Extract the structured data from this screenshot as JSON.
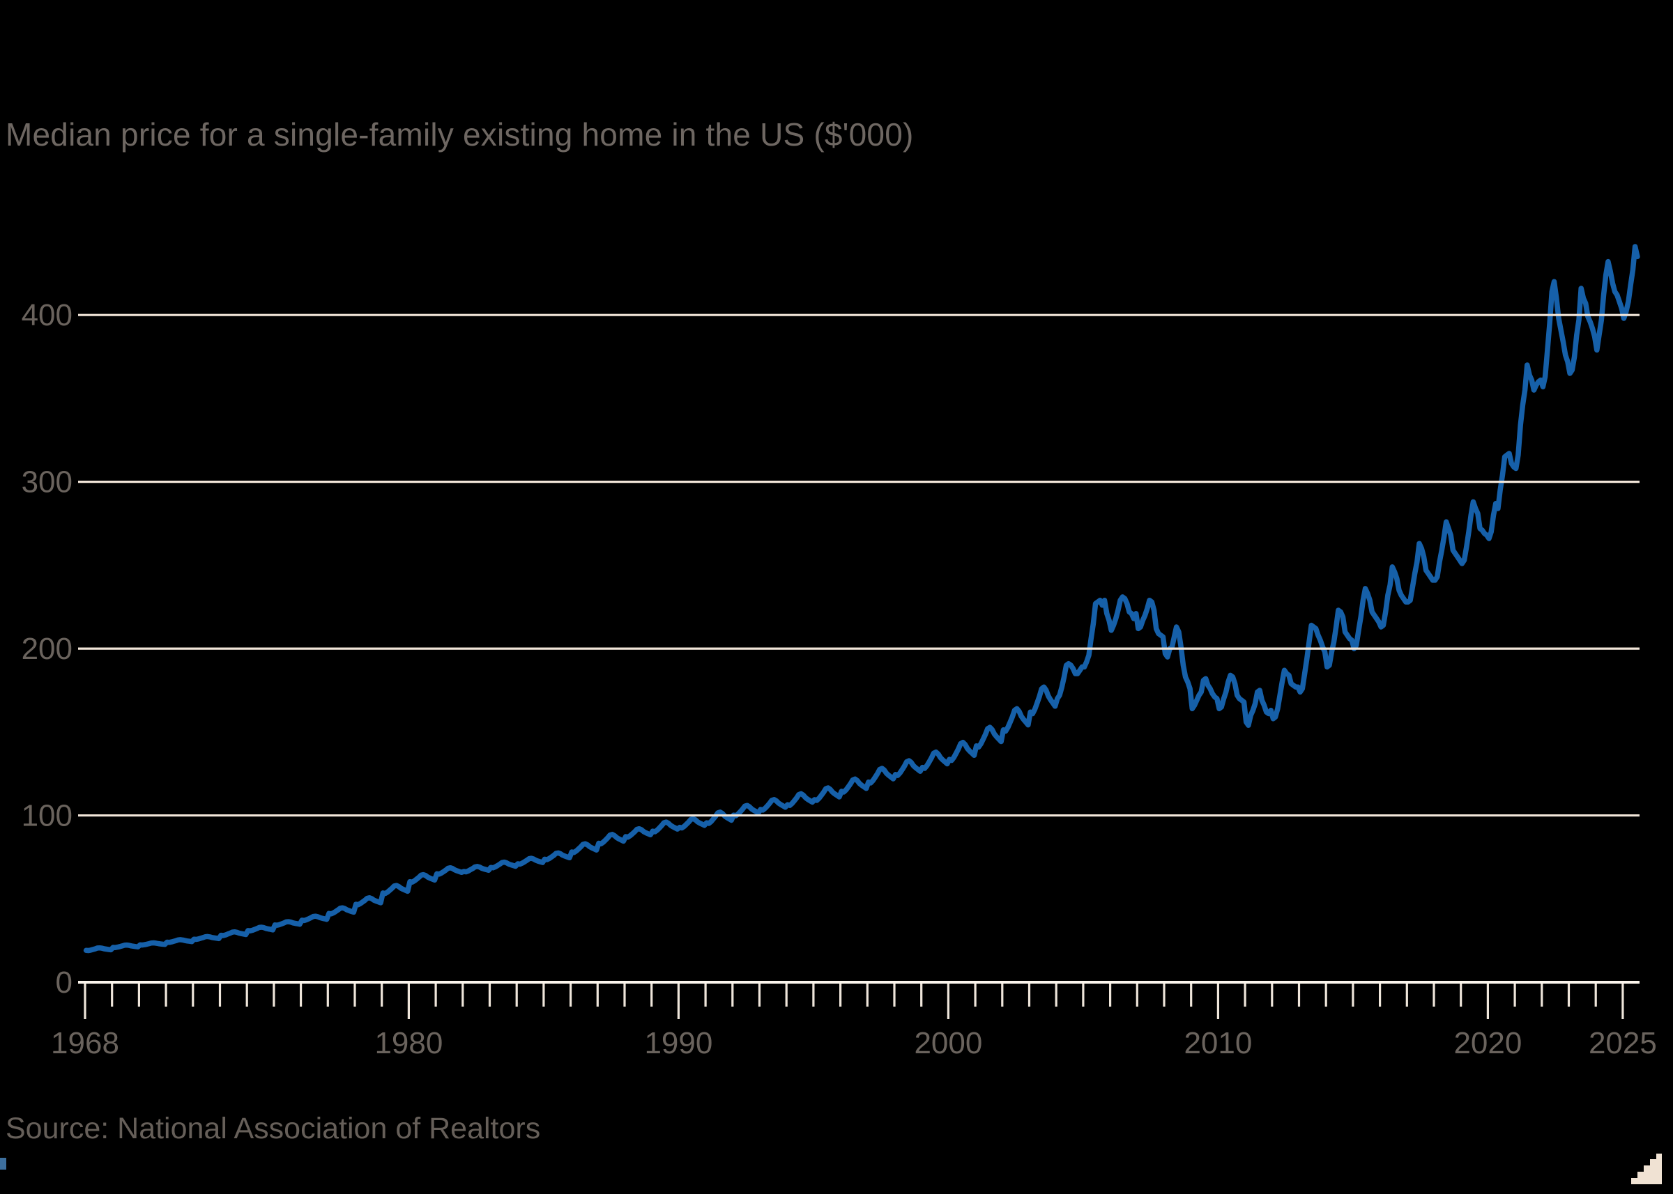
{
  "title": "Median price for a single-family existing home in the US ($'000)",
  "source": "Source: National Association of Realtors",
  "colors": {
    "background": "#000000",
    "line": "#1660a9",
    "gridline": "#f2e6d9",
    "axis": "#fbf5ec",
    "tick": "#eee5da",
    "title_text": "#6e6762",
    "axis_text": "#6a635d",
    "source_text": "#665f59",
    "corner_glyph": "#f0e2d3",
    "logo_fragment": "#3d6f9e"
  },
  "chart_data": {
    "type": "line",
    "title": "Median price for a single-family existing home in the US ($'000)",
    "unit": "$'000",
    "xlabel": "",
    "ylabel": "",
    "x_range": [
      1968,
      2025.6
    ],
    "y_range": [
      0,
      460
    ],
    "y_gridlines": [
      100,
      200,
      300,
      400
    ],
    "y_tick_labels": [
      "0",
      "100",
      "200",
      "300",
      "400"
    ],
    "x_tick_years_labeled": [
      1968,
      1980,
      1990,
      2000,
      2010,
      2020,
      2025
    ],
    "x_tick_every_year_from": 1968,
    "x_tick_every_year_to": 2025,
    "grid_on_top_of_series": true,
    "legend": "none",
    "series": [
      {
        "name": "Median price for a single-family existing home in the US",
        "color": "#1660a9",
        "frequency": "monthly",
        "seasonal_profile_month_fractions": [
          0.06,
          0.0,
          0.17,
          0.4,
          0.64,
          0.93,
          1.0,
          0.88,
          0.66,
          0.52,
          0.4,
          0.28
        ],
        "yearly_low_high": [
          [
            1968,
            19.0,
            20.6
          ],
          [
            1969,
            20.8,
            22.3
          ],
          [
            1970,
            22.3,
            23.6
          ],
          [
            1971,
            23.9,
            25.5
          ],
          [
            1972,
            25.7,
            27.4
          ],
          [
            1973,
            28.0,
            30.2
          ],
          [
            1974,
            30.8,
            33.0
          ],
          [
            1975,
            34.2,
            36.3
          ],
          [
            1976,
            37.0,
            39.6
          ],
          [
            1977,
            41.0,
            44.6
          ],
          [
            1978,
            46.5,
            50.6
          ],
          [
            1979,
            53.2,
            58.0
          ],
          [
            1980,
            60.0,
            64.5
          ],
          [
            1981,
            64.8,
            68.6
          ],
          [
            1982,
            66.2,
            69.4
          ],
          [
            1983,
            68.6,
            72.0
          ],
          [
            1984,
            70.8,
            74.3
          ],
          [
            1985,
            73.5,
            77.5
          ],
          [
            1986,
            77.8,
            83.0
          ],
          [
            1987,
            83.0,
            88.6
          ],
          [
            1988,
            87.0,
            92.0
          ],
          [
            1989,
            90.2,
            96.0
          ],
          [
            1990,
            92.5,
            98.0
          ],
          [
            1991,
            95.2,
            102.0
          ],
          [
            1992,
            99.8,
            106.0
          ],
          [
            1993,
            103.2,
            109.5
          ],
          [
            1994,
            106.0,
            113.0
          ],
          [
            1995,
            109.0,
            116.5
          ],
          [
            1996,
            114.0,
            121.8
          ],
          [
            1997,
            119.5,
            128.2
          ],
          [
            1998,
            124.0,
            132.8
          ],
          [
            1999,
            128.2,
            138.0
          ],
          [
            2000,
            133.0,
            143.8
          ],
          [
            2001,
            141.0,
            152.8
          ],
          [
            2002,
            150.5,
            164.0
          ],
          [
            2003,
            161.0,
            177.0
          ],
          [
            2004,
            170,
            191
          ],
          [
            2005,
            189,
            229
          ],
          [
            2006,
            211,
            231
          ],
          [
            2007,
            207,
            229
          ],
          [
            2008,
            176,
            213
          ],
          [
            2009,
            164,
            182
          ],
          [
            2010,
            164,
            184
          ],
          [
            2011,
            154,
            175
          ],
          [
            2012,
            158,
            187
          ],
          [
            2013,
            174,
            214
          ],
          [
            2014,
            189,
            223
          ],
          [
            2015,
            200,
            236
          ],
          [
            2016,
            213,
            249
          ],
          [
            2017,
            228,
            263
          ],
          [
            2018,
            241,
            276
          ],
          [
            2019,
            251,
            288
          ],
          [
            2020,
            266,
            317
          ],
          [
            2021,
            308,
            370
          ],
          [
            2022,
            357,
            420
          ],
          [
            2023,
            365,
            416
          ],
          [
            2024,
            379,
            432
          ],
          [
            2025,
            398,
            441
          ]
        ],
        "monthly_overrides": {
          "2004": [
            170,
            172,
            177,
            183,
            190,
            191,
            190,
            188,
            185,
            185,
            187,
            189
          ],
          "2005": [
            189,
            192,
            196,
            206,
            215,
            227,
            228,
            229,
            226,
            229,
            221,
            217
          ],
          "2006": [
            211,
            214,
            218,
            223,
            229,
            231,
            230,
            227,
            222,
            221,
            218,
            221
          ],
          "2007": [
            212,
            213,
            217,
            220,
            224,
            229,
            228,
            223,
            212,
            209,
            208,
            207
          ],
          "2008": [
            197,
            195,
            200,
            201,
            207,
            213,
            210,
            201,
            190,
            183,
            180,
            176
          ],
          "2009": [
            164,
            166,
            169,
            172,
            174,
            181,
            182,
            178,
            176,
            173,
            171,
            170
          ],
          "2010": [
            164,
            165,
            170,
            174,
            180,
            184,
            183,
            179,
            172,
            170,
            169,
            168
          ],
          "2011": [
            156,
            154,
            160,
            163,
            167,
            174,
            175,
            169,
            166,
            162,
            161,
            163
          ],
          "2012": [
            158,
            159,
            164,
            172,
            180,
            187,
            185,
            184,
            179,
            178,
            177,
            177
          ],
          "2013": [
            174,
            176,
            185,
            194,
            204,
            214,
            213,
            212,
            208,
            205,
            201,
            198
          ],
          "2014": [
            189,
            190,
            198,
            204,
            213,
            223,
            222,
            219,
            210,
            208,
            206,
            205
          ],
          "2015": [
            200,
            202,
            211,
            219,
            229,
            236,
            233,
            229,
            222,
            220,
            218,
            216
          ],
          "2016": [
            213,
            214,
            222,
            232,
            238,
            249,
            246,
            242,
            235,
            232,
            230,
            228
          ],
          "2017": [
            228,
            229,
            237,
            245,
            252,
            263,
            260,
            255,
            247,
            245,
            243,
            241
          ],
          "2018": [
            241,
            243,
            252,
            259,
            267,
            276,
            272,
            268,
            259,
            257,
            255,
            253
          ],
          "2019": [
            251,
            253,
            261,
            270,
            280,
            288,
            284,
            281,
            272,
            271,
            269,
            268
          ],
          "2020": [
            266,
            270,
            280,
            287,
            284,
            295,
            304,
            315,
            316,
            317,
            311,
            309
          ],
          "2021": [
            308,
            316,
            334,
            346,
            355,
            370,
            364,
            361,
            355,
            358,
            360,
            361
          ],
          "2022": [
            357,
            363,
            379,
            395,
            414,
            420,
            410,
            398,
            391,
            384,
            376,
            372
          ],
          "2023": [
            365,
            367,
            375,
            388,
            397,
            416,
            410,
            407,
            399,
            396,
            392,
            387
          ],
          "2024": [
            379,
            388,
            397,
            412,
            424,
            432,
            426,
            419,
            414,
            412,
            408,
            404
          ],
          "2025": [
            398,
            402,
            408,
            418,
            427,
            441,
            435
          ]
        }
      }
    ]
  }
}
